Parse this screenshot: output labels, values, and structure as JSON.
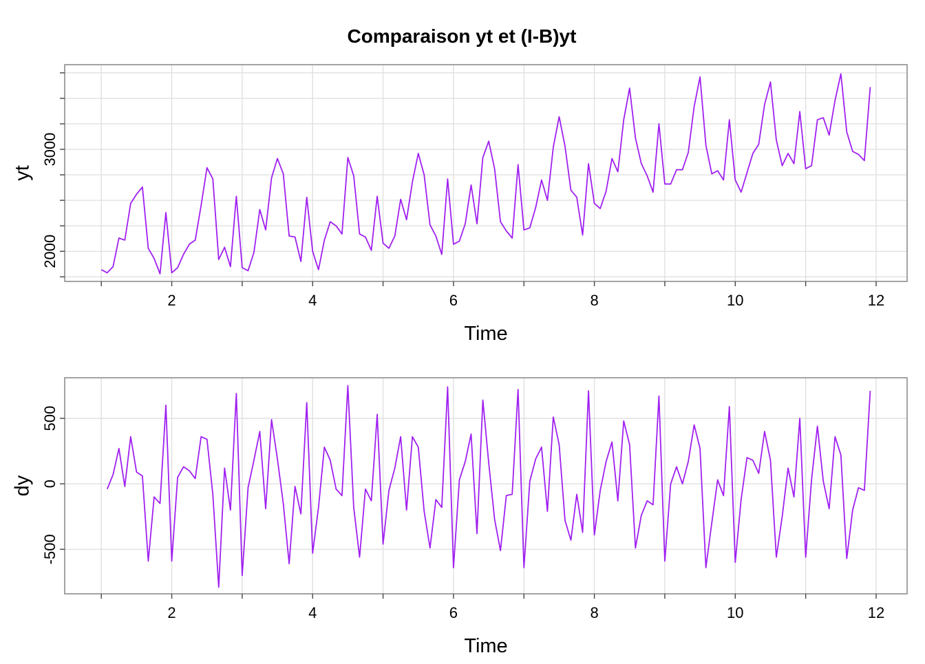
{
  "title": "Comparaison yt et (I-B)yt",
  "series_color": "#a020f0",
  "chart_data": [
    {
      "type": "line",
      "name": "yt-panel",
      "xlabel": "Time",
      "ylabel": "yt",
      "xlim": [
        0.48,
        12.44
      ],
      "ylim": [
        1705,
        3830
      ],
      "xticks": [
        1,
        2,
        3,
        4,
        5,
        6,
        7,
        8,
        9,
        10,
        11,
        12
      ],
      "xtick_labels": [
        "",
        "2",
        "",
        "4",
        "",
        "6",
        "",
        "8",
        "",
        "10",
        "",
        "12"
      ],
      "yticks": [
        1750,
        2000,
        2250,
        2500,
        2750,
        3000,
        3250,
        3500,
        3750
      ],
      "ytick_labels": [
        "",
        "2000",
        "",
        "",
        "",
        "3000",
        "",
        "",
        ""
      ],
      "grid": true,
      "x_start": 1,
      "frequency": 12,
      "series": [
        {
          "values": [
            1820,
            1790,
            1850,
            2130,
            2110,
            2470,
            2560,
            2630,
            2030,
            1930,
            1780,
            2380,
            1790,
            1840,
            1970,
            2070,
            2110,
            2450,
            2820,
            2710,
            1920,
            2040,
            1850,
            2540,
            1840,
            1810,
            1990,
            2410,
            2210,
            2720,
            2910,
            2760,
            2150,
            2140,
            1900,
            2530,
            2000,
            1820,
            2110,
            2290,
            2250,
            2170,
            2920,
            2740,
            2170,
            2140,
            2010,
            2540,
            2080,
            2030,
            2150,
            2510,
            2310,
            2680,
            2960,
            2750,
            2260,
            2150,
            1970,
            2710,
            2070,
            2100,
            2270,
            2650,
            2270,
            2920,
            3080,
            2810,
            2290,
            2200,
            2130,
            2850,
            2210,
            2230,
            2430,
            2700,
            2500,
            3020,
            3320,
            3030,
            2600,
            2530,
            2160,
            2860,
            2470,
            2420,
            2590,
            2910,
            2780,
            3290,
            3600,
            3110,
            2860,
            2740,
            2580,
            3250,
            2660,
            2660,
            2800,
            2800,
            2970,
            3420,
            3710,
            3040,
            2760,
            2790,
            2700,
            3290,
            2700,
            2580,
            2770,
            2960,
            3050,
            3440,
            3660,
            3090,
            2840,
            2960,
            2860,
            3370,
            2810,
            2840,
            3290,
            3310,
            3140,
            3480,
            3740,
            3170,
            2980,
            2950,
            2890,
            3610
          ]
        }
      ]
    },
    {
      "type": "line",
      "name": "dy-panel",
      "xlabel": "Time",
      "ylabel": "dy",
      "xlim": [
        0.48,
        12.44
      ],
      "ylim": [
        -840,
        810
      ],
      "xticks": [
        1,
        2,
        3,
        4,
        5,
        6,
        7,
        8,
        9,
        10,
        11,
        12
      ],
      "xtick_labels": [
        "",
        "2",
        "",
        "4",
        "",
        "6",
        "",
        "8",
        "",
        "10",
        "",
        "12"
      ],
      "yticks": [
        -500,
        0,
        500
      ],
      "ytick_labels": [
        "-500",
        "0",
        "500"
      ],
      "grid": true,
      "x_start": 1.0833,
      "frequency": 12,
      "series": [
        {
          "values": [
            -40,
            70,
            270,
            -20,
            360,
            90,
            60,
            -590,
            -100,
            -150,
            600,
            -590,
            50,
            130,
            100,
            40,
            360,
            340,
            -80,
            -790,
            120,
            -200,
            690,
            -700,
            -30,
            180,
            400,
            -190,
            490,
            190,
            -150,
            -610,
            -20,
            -230,
            620,
            -530,
            -180,
            280,
            180,
            -40,
            -90,
            750,
            -180,
            -560,
            -40,
            -130,
            530,
            -460,
            -50,
            120,
            360,
            -200,
            360,
            280,
            -210,
            -490,
            -120,
            -180,
            740,
            -640,
            30,
            170,
            380,
            -380,
            640,
            160,
            -270,
            -510,
            -90,
            -80,
            720,
            -640,
            20,
            190,
            280,
            -210,
            510,
            300,
            -280,
            -430,
            -80,
            -370,
            710,
            -390,
            -50,
            170,
            320,
            -130,
            480,
            300,
            -490,
            -240,
            -130,
            -160,
            670,
            -590,
            0,
            130,
            0,
            170,
            450,
            270,
            -640,
            -300,
            30,
            -90,
            590,
            -600,
            -120,
            200,
            180,
            80,
            400,
            180,
            -560,
            -250,
            120,
            -100,
            500,
            -560,
            30,
            440,
            20,
            -190,
            360,
            220,
            -570,
            -200,
            -30,
            -50,
            710
          ]
        }
      ]
    }
  ]
}
